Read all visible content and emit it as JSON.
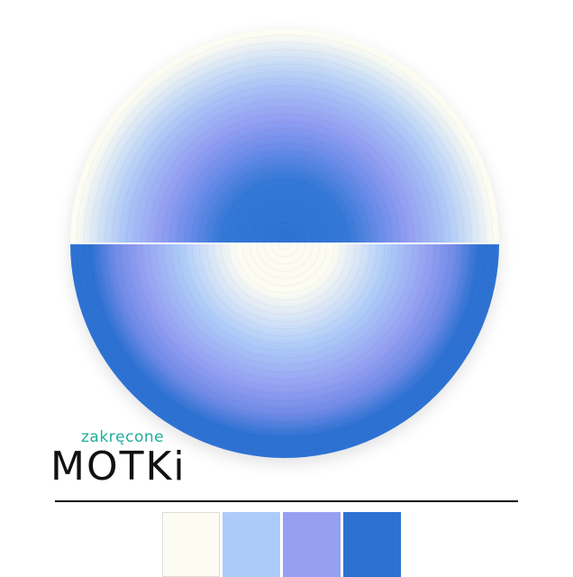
{
  "logo": {
    "subtitle": "zakręcone",
    "name": "MOTKi"
  },
  "product": {
    "image": "gradient-yarn-cake"
  },
  "palette": {
    "colors": [
      "#fcfcf3",
      "#adcbf8",
      "#95a0f2",
      "#2d72d2"
    ]
  }
}
